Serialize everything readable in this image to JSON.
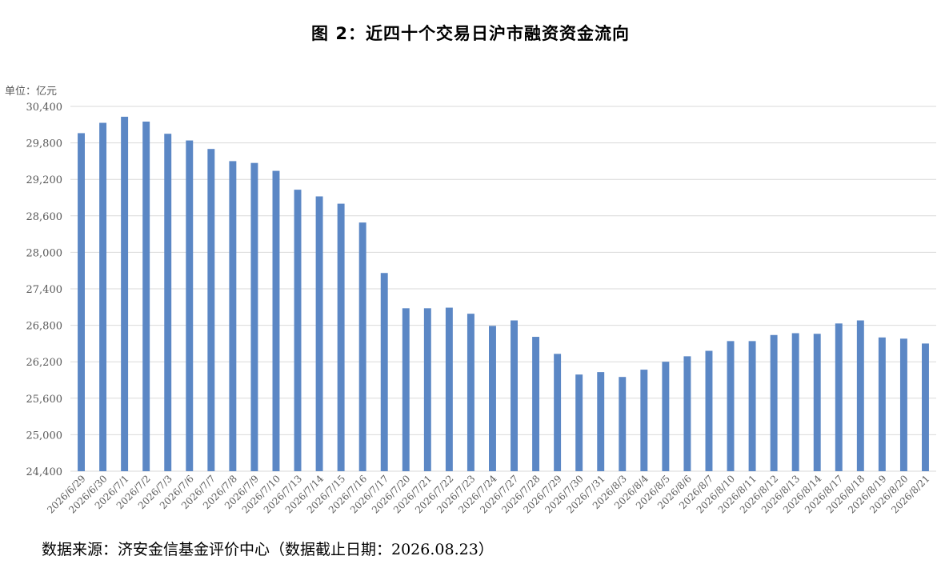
{
  "title": "图 2：近四十个交易日沪市融资资金流向",
  "unit_label": "单位：亿元",
  "source": "数据来源：济安金信基金评价中心（数据截止日期：2026.08.23）",
  "colors": {
    "bar": "#5B87C5",
    "grid": "#D9D9D9",
    "axis_text": "#595959"
  },
  "chart_data": {
    "type": "bar",
    "categories": [
      "2026/6/29",
      "2026/6/30",
      "2026/7/1",
      "2026/7/2",
      "2026/7/3",
      "2026/7/6",
      "2026/7/7",
      "2026/7/8",
      "2026/7/9",
      "2026/7/10",
      "2026/7/13",
      "2026/7/14",
      "2026/7/15",
      "2026/7/16",
      "2026/7/17",
      "2026/7/20",
      "2026/7/21",
      "2026/7/22",
      "2026/7/23",
      "2026/7/24",
      "2026/7/27",
      "2026/7/28",
      "2026/7/29",
      "2026/7/30",
      "2026/7/31",
      "2026/8/3",
      "2026/8/4",
      "2026/8/5",
      "2026/8/6",
      "2026/8/7",
      "2026/8/10",
      "2026/8/11",
      "2026/8/12",
      "2026/8/13",
      "2026/8/14",
      "2026/8/17",
      "2026/8/18",
      "2026/8/19",
      "2026/8/20",
      "2026/8/21"
    ],
    "values": [
      29960,
      30130,
      30230,
      30150,
      29950,
      29840,
      29700,
      29500,
      29470,
      29340,
      29030,
      28920,
      28800,
      28490,
      27660,
      27080,
      27080,
      27090,
      26990,
      26790,
      26880,
      26610,
      26330,
      25990,
      26030,
      25950,
      26070,
      26200,
      26290,
      26380,
      26540,
      26540,
      26640,
      26670,
      26660,
      26830,
      26880,
      26600,
      26580,
      26500
    ],
    "yticks": [
      "24,400",
      "25,000",
      "25,600",
      "26,200",
      "26,800",
      "27,400",
      "28,000",
      "28,600",
      "29,200",
      "29,800",
      "30,400"
    ],
    "ylim": [
      24400,
      30400
    ],
    "ytick_step": 600,
    "grid": true,
    "legend": "none"
  }
}
